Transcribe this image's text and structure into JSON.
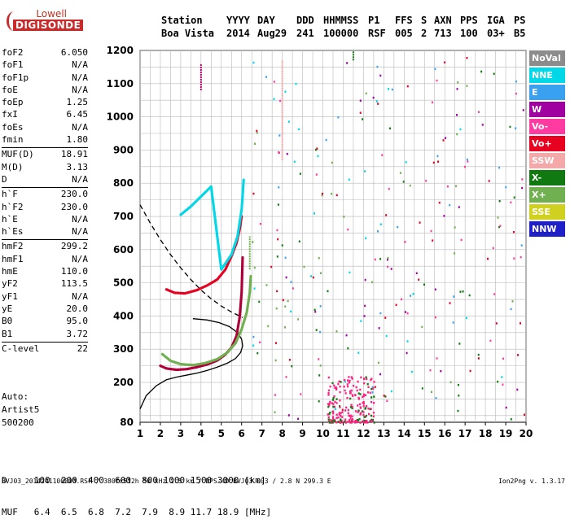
{
  "logo": {
    "brand": "Lowell",
    "name": "DIGISONDE"
  },
  "header": {
    "labels": [
      "Station",
      "YYYY",
      "DAY",
      "DDD",
      "HHMMSS",
      "P1",
      "FFS",
      "S",
      "AXN",
      "PPS",
      "IGA",
      "PS"
    ],
    "values": [
      "Boa Vista",
      "2014",
      "Aug29",
      "241",
      "100000",
      "RSF",
      "005",
      "2",
      "713",
      "100",
      "03+",
      "B5"
    ]
  },
  "params": [
    [
      {
        "k": "foF2",
        "v": "6.050"
      },
      {
        "k": "foF1",
        "v": "N/A"
      },
      {
        "k": "foF1p",
        "v": "N/A"
      },
      {
        "k": "foE",
        "v": "N/A"
      },
      {
        "k": "foEp",
        "v": "1.25"
      },
      {
        "k": "fxI",
        "v": "6.45"
      },
      {
        "k": "foEs",
        "v": "N/A"
      },
      {
        "k": "fmin",
        "v": "1.80"
      }
    ],
    [
      {
        "k": "MUF(D)",
        "v": "18.91"
      },
      {
        "k": "M(D)",
        "v": "3.13"
      },
      {
        "k": "D",
        "v": "N/A"
      }
    ],
    [
      {
        "k": "h`F",
        "v": "230.0"
      },
      {
        "k": "h`F2",
        "v": "230.0"
      },
      {
        "k": "h`E",
        "v": "N/A"
      },
      {
        "k": "h`Es",
        "v": "N/A"
      }
    ],
    [
      {
        "k": "hmF2",
        "v": "299.2"
      },
      {
        "k": "hmF1",
        "v": "N/A"
      },
      {
        "k": "hmE",
        "v": "110.0"
      },
      {
        "k": "yF2",
        "v": "113.5"
      },
      {
        "k": "yF1",
        "v": "N/A"
      },
      {
        "k": "yE",
        "v": "20.0"
      },
      {
        "k": "B0",
        "v": "95.0"
      },
      {
        "k": "B1",
        "v": "3.72"
      }
    ],
    [
      {
        "k": "C-level",
        "v": "22"
      }
    ]
  ],
  "auto": {
    "line1": "Auto:",
    "line2": "Artist5",
    "line3": "500200"
  },
  "legend": [
    {
      "label": "NoVal",
      "color": "#8c8c8c"
    },
    {
      "label": "NNE",
      "color": "#00d8e8"
    },
    {
      "label": "E",
      "color": "#3aa0f0"
    },
    {
      "label": "W",
      "color": "#a000a0"
    },
    {
      "label": "Vo-",
      "color": "#ff3aa0"
    },
    {
      "label": "Vo+",
      "color": "#e80020"
    },
    {
      "label": "SSW",
      "color": "#f4a8a8"
    },
    {
      "label": "X-",
      "color": "#107a10"
    },
    {
      "label": "X+",
      "color": "#70b050"
    },
    {
      "label": "SSE",
      "color": "#d0d020"
    },
    {
      "label": "NNW",
      "color": "#2020c8"
    }
  ],
  "bottom": {
    "row1": "D     100  200  400  600  800 1000 1500 3000 [km]",
    "row2": "MUF   6.4  6.5  6.8  7.2  7.9  8.9 11.7 18.9 [MHz]"
  },
  "footer": "BVJ03_2014241100000.RSF / 380fx512h 50 kHz 2.5 km / DPS-4D BVJ03 003 / 2.8 N 299.3 E",
  "version": "Ion2Png v. 1.3.17",
  "chart_data": {
    "type": "scatter",
    "x_ticks": [
      "1",
      "2",
      "3",
      "4",
      "5",
      "6",
      "7",
      "8",
      "9",
      "10",
      "11",
      "12",
      "13",
      "14",
      "15",
      "16",
      "17",
      "18",
      "19",
      "20"
    ],
    "y_ticks": [
      "80",
      "200",
      "300",
      "400",
      "500",
      "600",
      "700",
      "800",
      "900",
      "1000",
      "1100",
      "1200"
    ],
    "xlim": [
      1,
      20
    ],
    "ylim": [
      80,
      1200
    ],
    "traces": [
      {
        "name": "F2 O-trace",
        "color": "#b0003a",
        "x": [
          2.0,
          2.3,
          2.8,
          3.3,
          3.8,
          4.3,
          4.8,
          5.2,
          5.5,
          5.75,
          5.9,
          6.0,
          6.05
        ],
        "y": [
          250,
          242,
          238,
          240,
          246,
          254,
          266,
          284,
          305,
          340,
          395,
          470,
          580
        ]
      },
      {
        "name": "F2 X-trace",
        "color": "#70b050",
        "x": [
          2.1,
          2.5,
          3.0,
          3.6,
          4.2,
          4.8,
          5.3,
          5.7,
          6.0,
          6.25,
          6.4,
          6.45
        ],
        "y": [
          285,
          265,
          255,
          252,
          258,
          270,
          290,
          318,
          360,
          410,
          470,
          520
        ]
      },
      {
        "name": "F2 second hop",
        "color": "#e80020",
        "x": [
          2.3,
          2.7,
          3.2,
          3.8,
          4.3,
          4.8,
          5.2,
          5.5,
          5.75,
          5.9,
          6.0
        ],
        "y": [
          480,
          470,
          468,
          478,
          492,
          510,
          540,
          580,
          620,
          660,
          700
        ]
      },
      {
        "name": "NNE echoes",
        "color": "#00d8e8",
        "x": [
          3.0,
          3.5,
          4.0,
          4.5,
          5.0,
          5.5,
          5.8,
          6.0,
          6.1
        ],
        "y": [
          705,
          730,
          760,
          790,
          540,
          585,
          640,
          720,
          810
        ]
      }
    ],
    "profile_solid": {
      "x": [
        1.0,
        1.3,
        1.8,
        2.3,
        2.8,
        3.3,
        3.8,
        4.3,
        4.8,
        5.3,
        5.7,
        5.95,
        6.05,
        6.0,
        5.8,
        5.4,
        4.9,
        4.3,
        3.6
      ],
      "y": [
        120,
        160,
        190,
        208,
        216,
        222,
        228,
        236,
        246,
        258,
        272,
        290,
        310,
        330,
        350,
        368,
        380,
        388,
        392
      ]
    },
    "profile_dashed": {
      "x": [
        1.0,
        1.5,
        2.0,
        2.5,
        3.0,
        3.5,
        4.0,
        4.5,
        5.0,
        5.5,
        5.9,
        6.05
      ],
      "y": [
        735,
        680,
        630,
        585,
        545,
        510,
        478,
        452,
        430,
        412,
        400,
        395
      ]
    }
  }
}
